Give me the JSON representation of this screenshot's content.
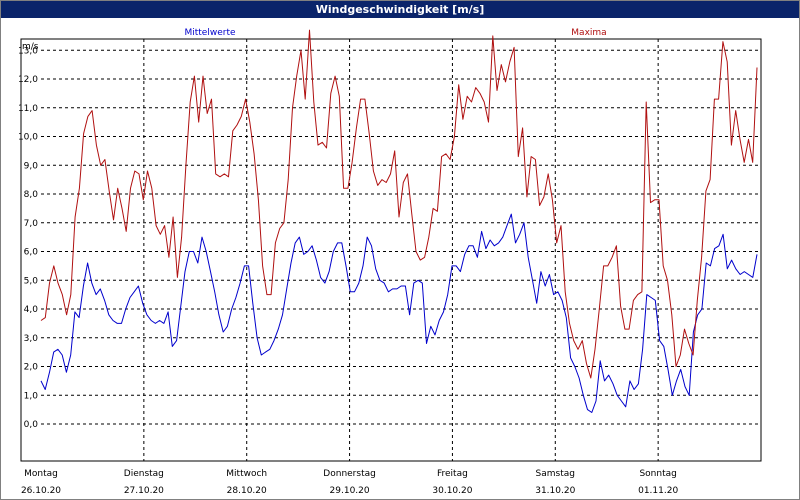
{
  "window": {
    "title": "Windgeschwindigkeit [m/s]"
  },
  "colors": {
    "mean": "#0000cc",
    "max": "#b01010",
    "grid": "#000000",
    "frame": "#000000"
  },
  "chart_data": {
    "type": "line",
    "title": "Windgeschwindigkeit [m/s]",
    "ylabel": "m/s",
    "ylim": [
      0,
      14.5
    ],
    "yticks": [
      "0,0",
      "1,0",
      "2,0",
      "3,0",
      "4,0",
      "5,0",
      "6,0",
      "7,0",
      "8,0",
      "9,0",
      "10,0",
      "11,0",
      "12,0",
      "13,0"
    ],
    "grid": true,
    "x_ticks": [
      {
        "day": "Montag",
        "date": "26.10.20"
      },
      {
        "day": "Dienstag",
        "date": "27.10.20"
      },
      {
        "day": "Mittwoch",
        "date": "28.10.20"
      },
      {
        "day": "Donnerstag",
        "date": "29.10.20"
      },
      {
        "day": "Freitag",
        "date": "30.10.20"
      },
      {
        "day": "Samstag",
        "date": "31.10.20"
      },
      {
        "day": "Sonntag",
        "date": "01.11.20"
      }
    ],
    "series": [
      {
        "name": "Mittelwerte",
        "color": "#0000cc",
        "values": [
          1.5,
          1.2,
          1.8,
          2.5,
          2.6,
          2.4,
          1.8,
          2.4,
          3.9,
          3.7,
          4.8,
          5.6,
          4.9,
          4.5,
          4.7,
          4.3,
          3.8,
          3.6,
          3.5,
          3.5,
          4.0,
          4.4,
          4.6,
          4.8,
          4.2,
          3.8,
          3.6,
          3.5,
          3.6,
          3.5,
          3.9,
          2.7,
          2.9,
          4.1,
          5.3,
          6.0,
          6.0,
          5.6,
          6.5,
          6.0,
          5.3,
          4.6,
          3.8,
          3.2,
          3.4,
          4.0,
          4.4,
          4.9,
          5.5,
          5.5,
          4.2,
          3.0,
          2.4,
          2.5,
          2.6,
          2.9,
          3.3,
          3.8,
          4.7,
          5.6,
          6.3,
          6.5,
          5.9,
          6.0,
          6.2,
          5.7,
          5.1,
          4.9,
          5.3,
          6.0,
          6.3,
          6.3,
          5.5,
          4.6,
          4.6,
          4.9,
          5.5,
          6.5,
          6.2,
          5.4,
          5.0,
          4.9,
          4.6,
          4.7,
          4.7,
          4.8,
          4.8,
          3.8,
          4.9,
          5.0,
          4.9,
          2.8,
          3.4,
          3.1,
          3.6,
          3.9,
          4.5,
          5.5,
          5.5,
          5.3,
          5.9,
          6.2,
          6.2,
          5.8,
          6.7,
          6.1,
          6.4,
          6.2,
          6.3,
          6.5,
          6.9,
          7.3,
          6.3,
          6.6,
          7.0,
          5.8,
          5.0,
          4.2,
          5.3,
          4.8,
          5.2,
          4.5,
          4.6,
          4.3,
          3.7,
          2.3,
          2.0,
          1.6,
          1.0,
          0.5,
          0.4,
          0.8,
          2.2,
          1.5,
          1.7,
          1.4,
          1.0,
          0.8,
          0.6,
          1.5,
          1.2,
          1.4,
          2.6,
          4.5,
          4.4,
          4.3,
          2.9,
          2.7,
          1.9,
          1.0,
          1.5,
          1.9,
          1.3,
          1.0,
          3.2,
          3.8,
          4.0,
          5.6,
          5.5,
          6.1,
          6.2,
          6.6,
          5.4,
          5.7,
          5.4,
          5.2,
          5.3,
          5.2,
          5.1,
          5.9
        ]
      },
      {
        "name": "Maxima",
        "color": "#b01010",
        "values": [
          3.6,
          3.7,
          4.9,
          5.5,
          4.9,
          4.5,
          3.8,
          4.5,
          7.2,
          8.2,
          10.1,
          10.7,
          10.9,
          9.7,
          9.0,
          9.2,
          8.1,
          7.1,
          8.2,
          7.5,
          6.7,
          8.2,
          8.8,
          8.7,
          7.8,
          8.8,
          8.2,
          6.9,
          6.6,
          6.9,
          5.8,
          7.2,
          5.1,
          6.5,
          9.0,
          11.2,
          12.1,
          10.5,
          12.1,
          10.8,
          11.3,
          8.7,
          8.6,
          8.7,
          8.6,
          10.2,
          10.4,
          10.7,
          11.3,
          10.5,
          9.4,
          7.8,
          5.5,
          4.5,
          4.5,
          6.3,
          6.8,
          7.0,
          8.5,
          11.0,
          12.1,
          13.0,
          11.3,
          13.7,
          11.2,
          9.7,
          9.8,
          9.6,
          11.5,
          12.1,
          11.4,
          8.2,
          8.2,
          9.1,
          10.3,
          11.3,
          11.3,
          10.1,
          8.8,
          8.3,
          8.5,
          8.4,
          8.7,
          9.5,
          7.2,
          8.4,
          8.7,
          7.3,
          6.0,
          5.7,
          5.8,
          6.5,
          7.5,
          7.4,
          9.3,
          9.4,
          9.2,
          10.0,
          11.8,
          10.6,
          11.4,
          11.2,
          11.7,
          11.5,
          11.2,
          10.5,
          13.5,
          11.6,
          12.5,
          11.9,
          12.6,
          13.1,
          9.3,
          10.3,
          7.9,
          9.3,
          9.2,
          7.6,
          7.9,
          8.7,
          7.8,
          6.3,
          6.9,
          4.6,
          3.5,
          2.9,
          2.6,
          2.9,
          2.1,
          1.6,
          2.6,
          4.0,
          5.5,
          5.5,
          5.8,
          6.2,
          4.1,
          3.3,
          3.3,
          4.3,
          4.5,
          4.6,
          11.2,
          7.7,
          7.8,
          7.8,
          5.5,
          5.0,
          3.8,
          2.0,
          2.4,
          3.3,
          2.8,
          2.4,
          4.3,
          5.8,
          8.1,
          8.5,
          11.3,
          11.3,
          13.3,
          12.6,
          9.7,
          10.9,
          9.9,
          9.1,
          9.9,
          9.1,
          12.4
        ]
      }
    ]
  }
}
